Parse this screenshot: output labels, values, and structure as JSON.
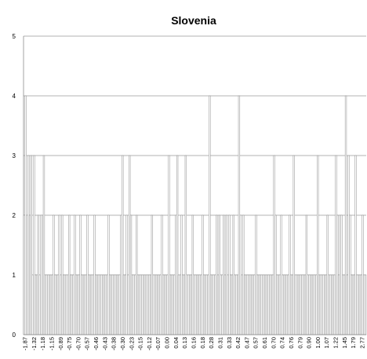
{
  "chart_data": {
    "type": "bar",
    "title": "Slovenia",
    "xlabel": "",
    "ylabel": "",
    "ylim": [
      0,
      5
    ],
    "yticks": [
      0,
      1,
      2,
      3,
      4,
      5
    ],
    "grid": true,
    "legend": "none",
    "bar_color": "#ffffff",
    "bar_edge_color": "#8c8c8c",
    "xtick_labels": [
      "-1.87",
      "-1.32",
      "-1.18",
      "-1.15",
      "-0.89",
      "-0.75",
      "-0.70",
      "-0.57",
      "-0.46",
      "-0.43",
      "-0.38",
      "-0.30",
      "-0.23",
      "-0.15",
      "-0.12",
      "-0.07",
      "0.00",
      "0.04",
      "0.13",
      "0.16",
      "0.18",
      "0.28",
      "0.31",
      "0.33",
      "0.42",
      "0.47",
      "0.57",
      "0.61",
      "0.70",
      "0.74",
      "0.76",
      "0.79",
      "0.90",
      "1.00",
      "1.07",
      "1.22",
      "1.45",
      "1.79",
      "2.77"
    ],
    "values": [
      2,
      4,
      2,
      3,
      2,
      3,
      1,
      3,
      1,
      1,
      2,
      1,
      2,
      2,
      3,
      1,
      1,
      1,
      1,
      1,
      1,
      2,
      1,
      1,
      1,
      2,
      1,
      2,
      1,
      1,
      1,
      1,
      2,
      1,
      1,
      1,
      2,
      1,
      1,
      1,
      2,
      1,
      1,
      1,
      1,
      2,
      1,
      1,
      1,
      1,
      2,
      1,
      1,
      1,
      1,
      1,
      1,
      1,
      1,
      1,
      2,
      1,
      1,
      1,
      1,
      1,
      1,
      1,
      1,
      2,
      3,
      1,
      1,
      2,
      1,
      3,
      2,
      1,
      1,
      1,
      2,
      1,
      1,
      1,
      1,
      1,
      1,
      1,
      1,
      1,
      1,
      2,
      1,
      1,
      1,
      1,
      1,
      1,
      2,
      1,
      1,
      1,
      1,
      3,
      1,
      1,
      1,
      1,
      2,
      3,
      1,
      1,
      2,
      1,
      1,
      3,
      1,
      1,
      1,
      1,
      2,
      1,
      1,
      1,
      1,
      1,
      1,
      2,
      1,
      1,
      1,
      1,
      4,
      1,
      1,
      1,
      1,
      2,
      1,
      2,
      1,
      1,
      2,
      1,
      2,
      1,
      2,
      1,
      1,
      2,
      1,
      1,
      1,
      4,
      2,
      1,
      2,
      1,
      1,
      1,
      1,
      1,
      1,
      1,
      1,
      2,
      1,
      1,
      1,
      1,
      1,
      1,
      1,
      1,
      1,
      1,
      1,
      1,
      3,
      2,
      1,
      1,
      1,
      2,
      1,
      1,
      1,
      1,
      1,
      2,
      1,
      1,
      3,
      1,
      1,
      1,
      1,
      1,
      1,
      1,
      1,
      2,
      1,
      1,
      1,
      1,
      1,
      1,
      1,
      3,
      1,
      1,
      1,
      1,
      1,
      1,
      2,
      1,
      1,
      1,
      1,
      1,
      3,
      2,
      1,
      2,
      2,
      1,
      1,
      4,
      1,
      3,
      2,
      1,
      1,
      1,
      3,
      1,
      1,
      1,
      1,
      2,
      1,
      1
    ]
  }
}
